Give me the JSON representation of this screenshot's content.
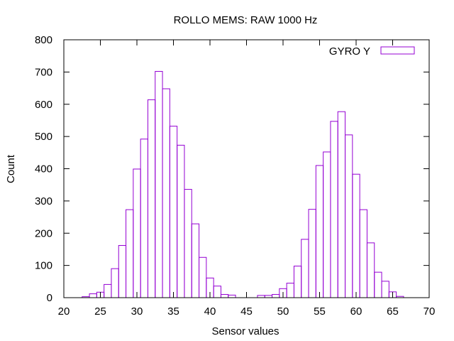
{
  "chart_data": {
    "type": "bar",
    "title": "ROLLO MEMS: RAW 1000 Hz",
    "xlabel": "Sensor values",
    "ylabel": "Count",
    "xlim": [
      20,
      70
    ],
    "ylim": [
      0,
      800
    ],
    "xticks": [
      20,
      25,
      30,
      35,
      40,
      45,
      50,
      55,
      60,
      65,
      70
    ],
    "yticks": [
      0,
      100,
      200,
      300,
      400,
      500,
      600,
      700,
      800
    ],
    "bin_width": 1,
    "grid": false,
    "legend_position": "top-right",
    "series": [
      {
        "name": "GYRO Y",
        "color": "#9400d3",
        "bins": [
          23,
          24,
          25,
          26,
          27,
          28,
          29,
          30,
          31,
          32,
          33,
          34,
          35,
          36,
          37,
          38,
          39,
          40,
          41,
          42,
          43,
          47,
          48,
          49,
          50,
          51,
          52,
          53,
          54,
          55,
          56,
          57,
          58,
          59,
          60,
          61,
          62,
          63,
          64,
          65,
          66
        ],
        "values": [
          3,
          12,
          17,
          41,
          90,
          162,
          273,
          399,
          492,
          614,
          702,
          648,
          532,
          473,
          336,
          229,
          125,
          61,
          36,
          10,
          8,
          7,
          7,
          10,
          28,
          45,
          98,
          181,
          274,
          410,
          452,
          547,
          577,
          505,
          383,
          273,
          170,
          79,
          51,
          18,
          4
        ]
      }
    ]
  }
}
